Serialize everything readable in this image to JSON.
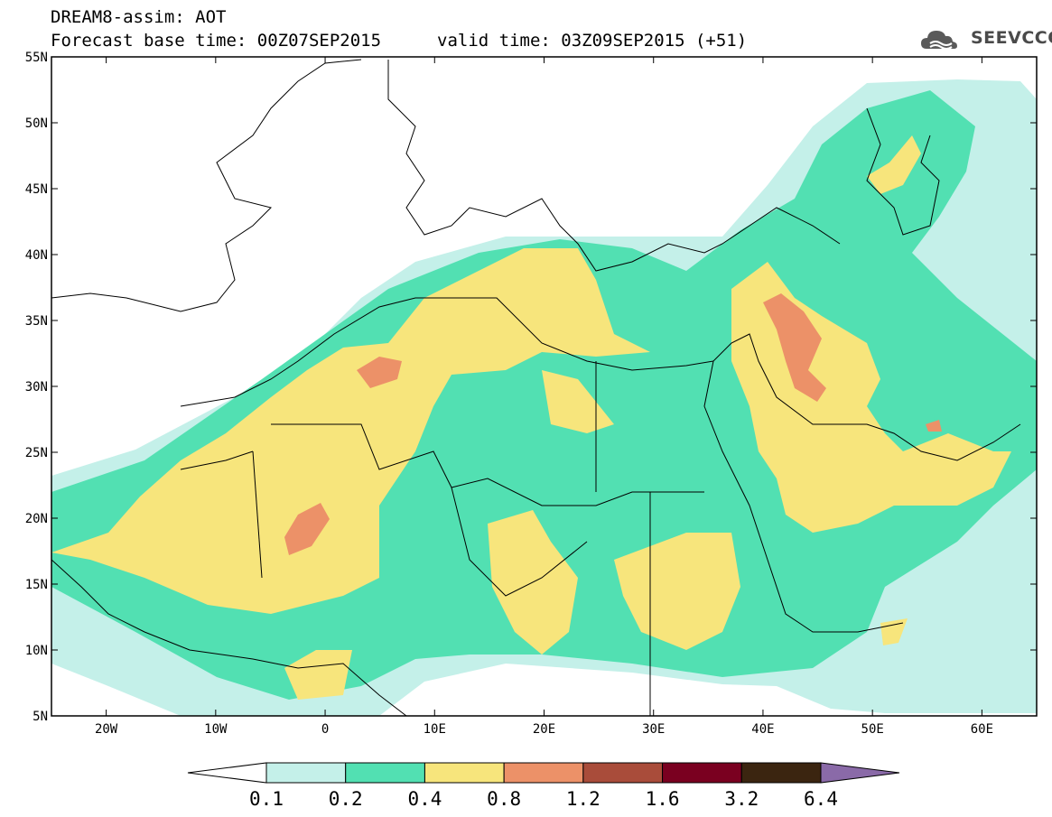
{
  "header": {
    "line1": "DREAM8-assim: AOT",
    "line2": "Forecast base time: 00Z07SEP2015",
    "valid": "valid time: 03Z09SEP2015 (+51)"
  },
  "logo": {
    "text": "SEEVCCC",
    "icon": "cloud-icon"
  },
  "map": {
    "lon_range": [
      -25,
      65
    ],
    "lat_range": [
      5,
      55
    ],
    "lat_ticks": [
      {
        "value": 55,
        "label": "55N"
      },
      {
        "value": 50,
        "label": "50N"
      },
      {
        "value": 45,
        "label": "45N"
      },
      {
        "value": 40,
        "label": "40N"
      },
      {
        "value": 35,
        "label": "35N"
      },
      {
        "value": 30,
        "label": "30N"
      },
      {
        "value": 25,
        "label": "25N"
      },
      {
        "value": 20,
        "label": "20N"
      },
      {
        "value": 15,
        "label": "15N"
      },
      {
        "value": 10,
        "label": "10N"
      },
      {
        "value": 5,
        "label": "5N"
      }
    ],
    "lon_ticks": [
      {
        "value": -20,
        "label": "20W"
      },
      {
        "value": -10,
        "label": "10W"
      },
      {
        "value": 0,
        "label": "0"
      },
      {
        "value": 10,
        "label": "10E"
      },
      {
        "value": 20,
        "label": "20E"
      },
      {
        "value": 30,
        "label": "30E"
      },
      {
        "value": 40,
        "label": "40E"
      },
      {
        "value": 50,
        "label": "50E"
      },
      {
        "value": 60,
        "label": "60E"
      }
    ],
    "colors": {
      "c01": "#c4f0e9",
      "c02": "#52e0b2",
      "c04": "#f7e57c",
      "c08": "#ec9168",
      "c12": "#a94c3a"
    }
  },
  "colorbar": {
    "bins": [
      {
        "color": "#ffffff"
      },
      {
        "color": "#c4f0e9"
      },
      {
        "color": "#52e0b2"
      },
      {
        "color": "#f7e57c"
      },
      {
        "color": "#ec9168"
      },
      {
        "color": "#a94c3a"
      },
      {
        "color": "#7a0020"
      },
      {
        "color": "#3b2510"
      },
      {
        "color": "#8a6aa8"
      }
    ],
    "labels": [
      "0.1",
      "0.2",
      "0.4",
      "0.8",
      "1.2",
      "1.6",
      "3.2",
      "6.4"
    ]
  }
}
